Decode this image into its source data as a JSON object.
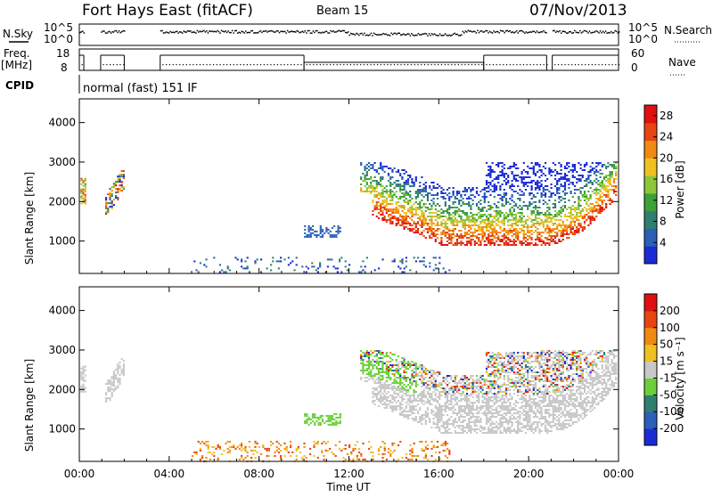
{
  "header": {
    "station": "Fort Hays East (fitACF)",
    "beam": "Beam 15",
    "date": "07/Nov/2013"
  },
  "status_panels": {
    "nsky_label": "N.Sky",
    "nsearch_label": "N.Search",
    "noise_top_tick": "10^5",
    "noise_bottom_tick": "10^0",
    "freq_label": "Freq.",
    "freq_unit": "[MHz]",
    "freq_ticks": [
      "18",
      "8"
    ],
    "nave_label": "Nave",
    "nave_ticks": [
      "60",
      "0"
    ],
    "cpid_label": "CPID",
    "cpid_text": "normal (fast) 151 IF"
  },
  "chart_data": [
    {
      "type": "heatmap",
      "title": "",
      "xlabel": "",
      "ylabel": "Slant Range [km]",
      "x_ticks": [
        "00:00",
        "04:00",
        "08:00",
        "12:00",
        "16:00",
        "20:00",
        "00:00"
      ],
      "xlim_hours": [
        0,
        24
      ],
      "ylim_km": [
        180,
        4600
      ],
      "y_ticks": [
        1000,
        2000,
        3000,
        4000
      ],
      "colorbar": {
        "label": "Power [dB]",
        "ticks": [
          "4",
          "8",
          "12",
          "16",
          "20",
          "24",
          "28"
        ],
        "range": [
          0,
          30
        ],
        "colors": [
          "#1a2bd6",
          "#2b5fb8",
          "#2f7f70",
          "#3ea03a",
          "#8cc83a",
          "#f0c020",
          "#f08a10",
          "#e84410",
          "#e01010"
        ]
      }
    },
    {
      "type": "heatmap",
      "title": "",
      "xlabel": "Time UT",
      "ylabel": "Slant Range [km]",
      "x_ticks": [
        "00:00",
        "04:00",
        "08:00",
        "12:00",
        "16:00",
        "20:00",
        "00:00"
      ],
      "xlim_hours": [
        0,
        24
      ],
      "ylim_km": [
        180,
        4600
      ],
      "y_ticks": [
        1000,
        2000,
        3000,
        4000
      ],
      "colorbar": {
        "label": "Velocity [m s⁻¹]",
        "ticks": [
          "200",
          "100",
          "50",
          "15",
          "-15",
          "-50",
          "-100",
          "-200"
        ],
        "colors": [
          "#1a2bd6",
          "#2b5fb8",
          "#2f7f70",
          "#6ccf3a",
          "#c8c8c8",
          "#f0c020",
          "#f08a10",
          "#e84410",
          "#e01010"
        ]
      }
    }
  ],
  "colors": {
    "ground_scatter": "#c8c8c8",
    "axis": "#000000"
  }
}
